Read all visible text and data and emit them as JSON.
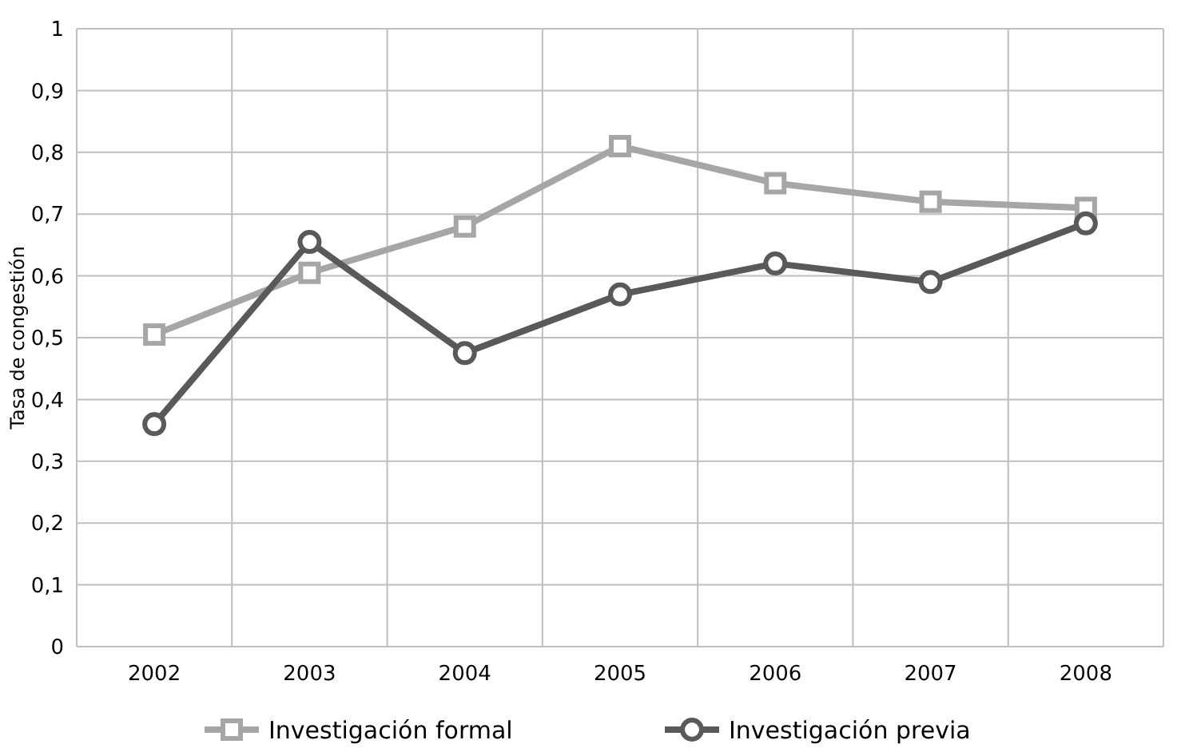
{
  "chart_data": {
    "type": "line",
    "ylabel": "Tasa de congestión",
    "categories": [
      "2002",
      "2003",
      "2004",
      "2005",
      "2006",
      "2007",
      "2008"
    ],
    "series": [
      {
        "name": "Investigación formal",
        "color": "#a6a6a6",
        "marker": "square",
        "values": [
          0.505,
          0.605,
          0.68,
          0.81,
          0.75,
          0.72,
          0.71
        ]
      },
      {
        "name": "Investigación previa",
        "color": "#595959",
        "marker": "circle",
        "values": [
          0.36,
          0.655,
          0.475,
          0.57,
          0.62,
          0.59,
          0.685
        ]
      }
    ],
    "ylim": [
      0,
      1
    ],
    "yticks": [
      0,
      {
        "value": 0.1,
        "label": "0,1"
      },
      {
        "value": 0.2,
        "label": "0,2"
      },
      {
        "value": 0.3,
        "label": "0,3"
      },
      {
        "value": 0.4,
        "label": "0,4"
      },
      {
        "value": 0.5,
        "label": "0,5"
      },
      {
        "value": 0.6,
        "label": "0,6"
      },
      {
        "value": 0.7,
        "label": "0,7"
      },
      {
        "value": 0.8,
        "label": "0,8"
      },
      {
        "value": 0.9,
        "label": "0,9"
      },
      1
    ],
    "grid": true,
    "legend": "bottom",
    "line_style": "solid"
  }
}
